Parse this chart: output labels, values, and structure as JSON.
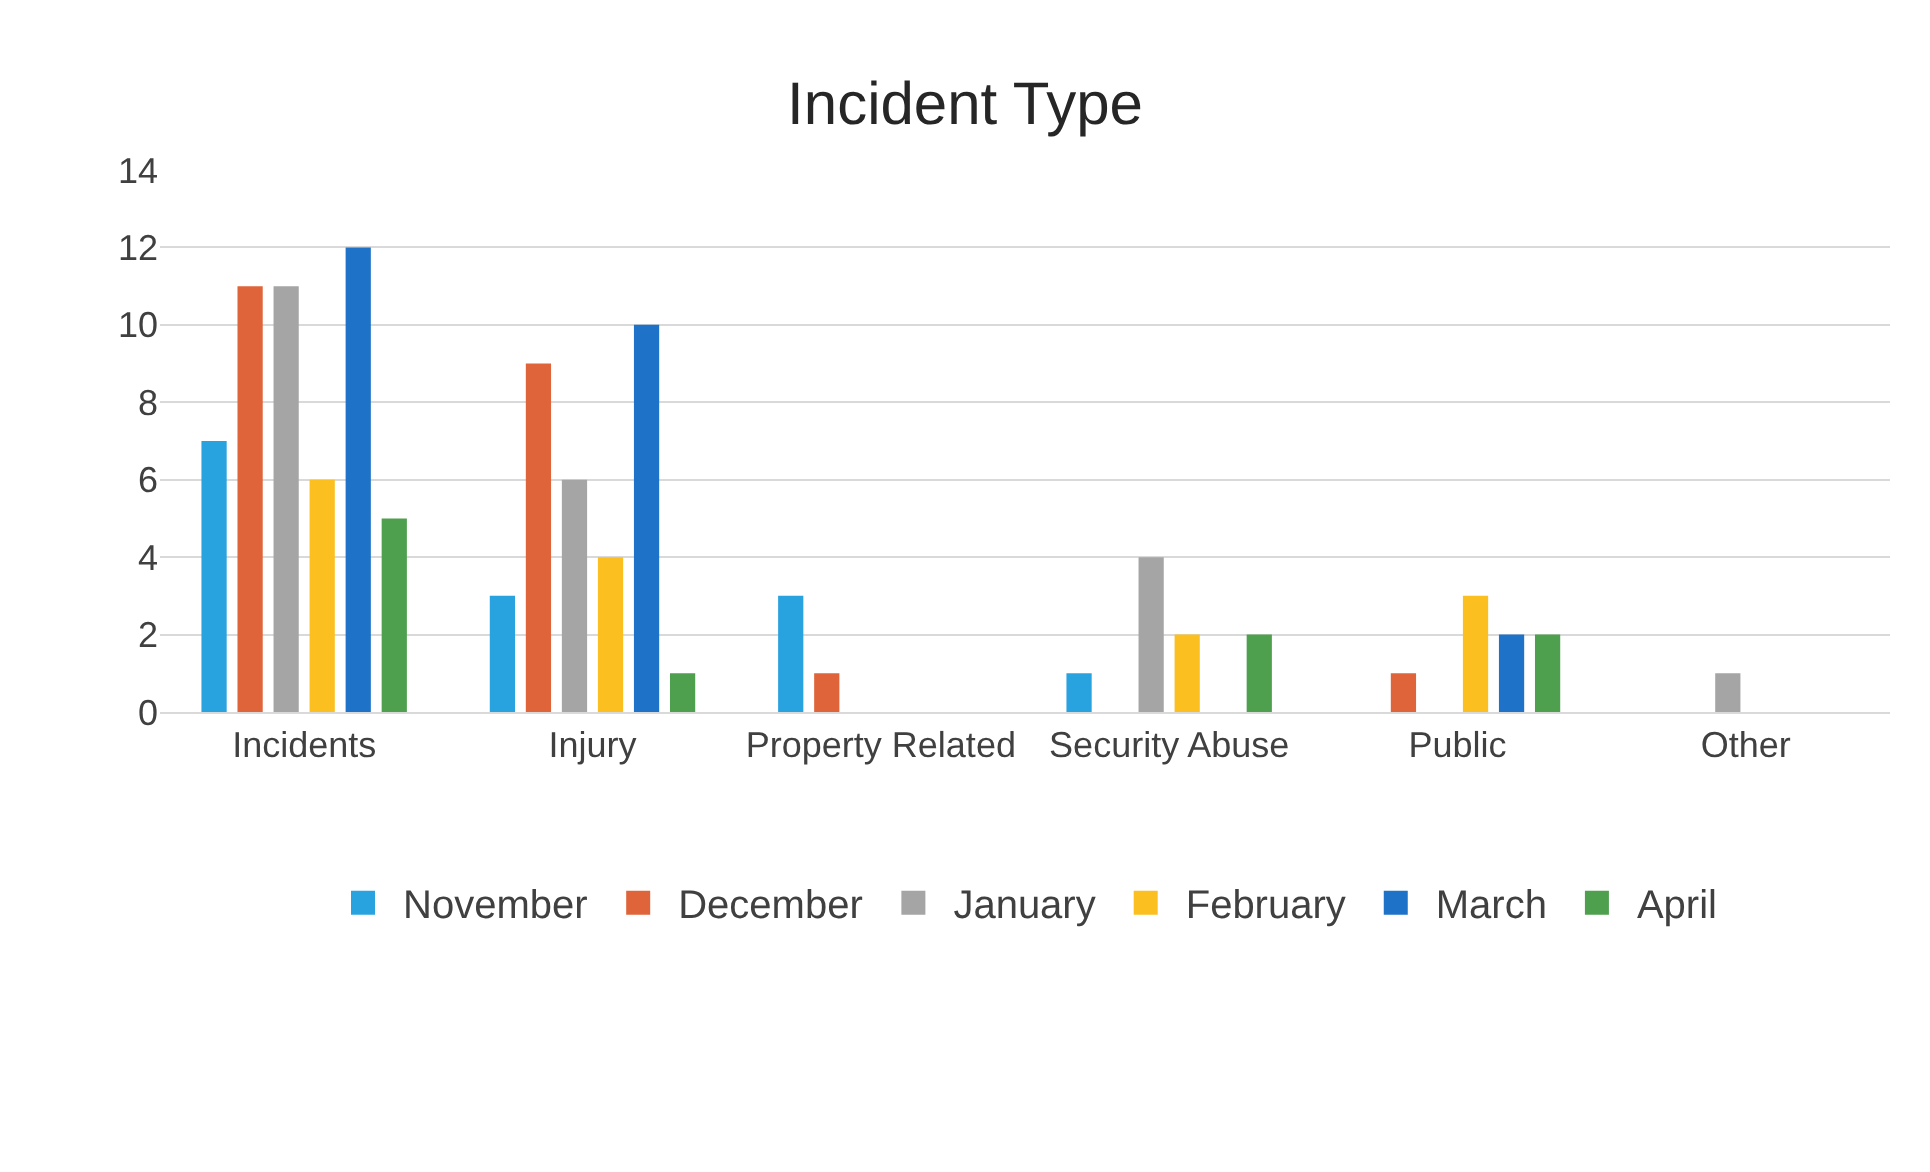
{
  "chart_data": {
    "type": "bar",
    "title": "Incident Type",
    "categories": [
      "Incidents",
      "Injury",
      "Property Related",
      "Security Abuse",
      "Public",
      "Other"
    ],
    "series": [
      {
        "name": "November",
        "color": "#29a3e0",
        "values": [
          7,
          3,
          3,
          1,
          0,
          0
        ]
      },
      {
        "name": "December",
        "color": "#e0643a",
        "values": [
          11,
          9,
          1,
          0,
          1,
          0
        ]
      },
      {
        "name": "January",
        "color": "#a5a5a5",
        "values": [
          11,
          6,
          0,
          4,
          0,
          1
        ]
      },
      {
        "name": "February",
        "color": "#fbbf1f",
        "values": [
          6,
          4,
          0,
          2,
          3,
          0
        ]
      },
      {
        "name": "March",
        "color": "#1e73c8",
        "values": [
          12,
          10,
          0,
          0,
          2,
          0
        ]
      },
      {
        "name": "April",
        "color": "#4ea04e",
        "values": [
          5,
          1,
          0,
          2,
          2,
          0
        ]
      }
    ],
    "ylim": [
      0,
      14
    ],
    "yticks": [
      0,
      2,
      4,
      6,
      8,
      10,
      12,
      14
    ],
    "grid": "y",
    "legend": "bottom"
  }
}
